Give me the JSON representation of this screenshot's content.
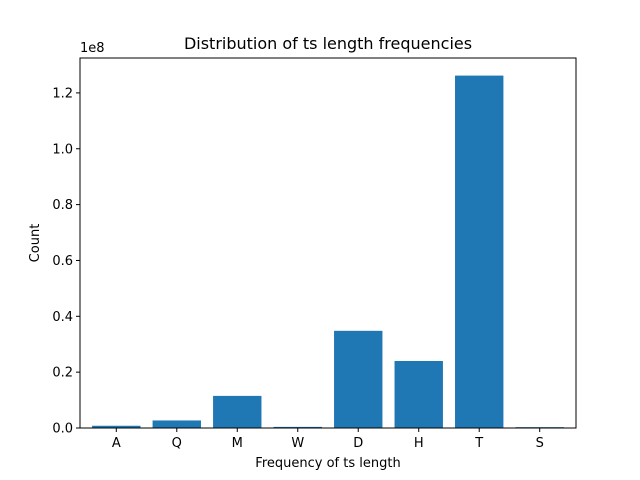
{
  "chart_data": {
    "type": "bar",
    "title": "Distribution of ts length frequencies",
    "xlabel": "Frequency of ts length",
    "ylabel": "Count",
    "y_scale_label": "1e8",
    "categories": [
      "A",
      "Q",
      "M",
      "W",
      "D",
      "H",
      "T",
      "S"
    ],
    "values": [
      0.008,
      0.027,
      0.115,
      0.004,
      0.348,
      0.24,
      1.262,
      0.003
    ],
    "y_multiplier": 100000000,
    "ylim": [
      0,
      1.325
    ],
    "yticks": [
      0.0,
      0.2,
      0.4,
      0.6,
      0.8,
      1.0,
      1.2
    ],
    "ytick_labels": [
      "0.0",
      "0.2",
      "0.4",
      "0.6",
      "0.8",
      "1.0",
      "1.2"
    ],
    "grid": false,
    "bar_color": "#1f77b4"
  }
}
